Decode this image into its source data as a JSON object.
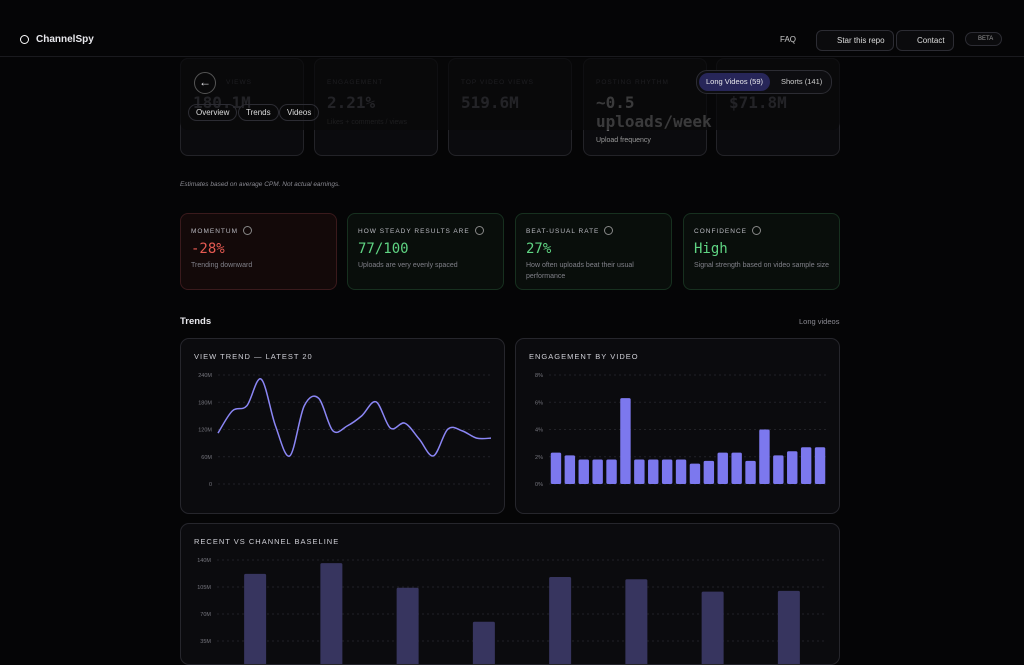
{
  "header": {
    "brand": "ChannelSpy",
    "nav": [
      "FAQ",
      "Star this repo",
      "Contact"
    ],
    "badge": "BETA"
  },
  "toolbar": {
    "tabs": [
      "Overview",
      "Trends",
      "Videos"
    ],
    "toggle": [
      "Long Videos (59)",
      "Shorts (141)"
    ]
  },
  "stats": [
    {
      "label": "VIEWS",
      "value": "180.1M"
    },
    {
      "label": "ENGAGEMENT",
      "value": "2.21%",
      "sub": "Likes + comments / views"
    },
    {
      "label": "TOP VIDEO VIEWS",
      "value": "519.6M"
    },
    {
      "label": "POSTING RHYTHM",
      "value": "~0.5 uploads/week",
      "sub": "Upload frequency"
    },
    {
      "value": "$71.8M"
    }
  ],
  "note": "Estimates based on average CPM. Not actual earnings.",
  "signals": [
    {
      "label": "MOMENTUM",
      "value": "-28%",
      "sub": "Trending downward"
    },
    {
      "label": "HOW STEADY RESULTS ARE",
      "value": "77/100",
      "sub": "Uploads are very evenly spaced"
    },
    {
      "label": "BEAT-USUAL RATE",
      "value": "27%",
      "sub": "How often uploads beat their usual performance"
    },
    {
      "label": "CONFIDENCE",
      "value": "High",
      "sub": "Signal strength based on video sample size"
    }
  ],
  "section": {
    "title": "Trends",
    "filter": "Long videos"
  },
  "chart_data": [
    {
      "type": "line",
      "title": "VIEW TREND — LATEST 20",
      "color": "#8b86f5",
      "values": [
        112000000,
        161000000,
        172000000,
        231000000,
        128000000,
        62000000,
        172000000,
        189000000,
        117000000,
        128000000,
        150000000,
        181000000,
        123000000,
        134000000,
        99000000,
        62000000,
        121000000,
        117000000,
        101000000,
        101000000
      ],
      "ylim": [
        0,
        240000000
      ],
      "yticks": [
        0,
        {
          "value": 60000000,
          "label": "60M"
        },
        {
          "value": 120000000,
          "label": "120M"
        },
        {
          "value": 180000000,
          "label": "180M"
        },
        {
          "value": 240000000,
          "label": "240M"
        }
      ],
      "grid": true
    },
    {
      "type": "bar",
      "title": "ENGAGEMENT BY VIDEO",
      "color": "#7c78ee",
      "values": [
        2.3,
        2.1,
        1.8,
        1.8,
        1.8,
        6.3,
        1.8,
        1.8,
        1.8,
        1.8,
        1.5,
        1.7,
        2.3,
        2.3,
        1.7,
        4.0,
        2.1,
        2.4,
        2.7,
        2.7
      ],
      "ylim": [
        0,
        8
      ],
      "yticks": [
        {
          "value": 0,
          "label": "0%"
        },
        {
          "value": 2,
          "label": "2%"
        },
        {
          "value": 4,
          "label": "4%"
        },
        {
          "value": 6,
          "label": "6%"
        },
        {
          "value": 8,
          "label": "8%"
        }
      ],
      "grid": true
    },
    {
      "type": "bar",
      "title": "RECENT VS CHANNEL BASELINE",
      "color": "#37355f",
      "values": [
        122000000,
        136000000,
        104000000,
        60000000,
        118000000,
        115000000,
        99000000,
        100000000
      ],
      "ylim": [
        0,
        140000000
      ],
      "yticks": [
        {
          "value": 35000000,
          "label": "35M"
        },
        {
          "value": 70000000,
          "label": "70M"
        },
        {
          "value": 105000000,
          "label": "105M"
        },
        {
          "value": 140000000,
          "label": "140M"
        }
      ],
      "grid": true
    }
  ]
}
